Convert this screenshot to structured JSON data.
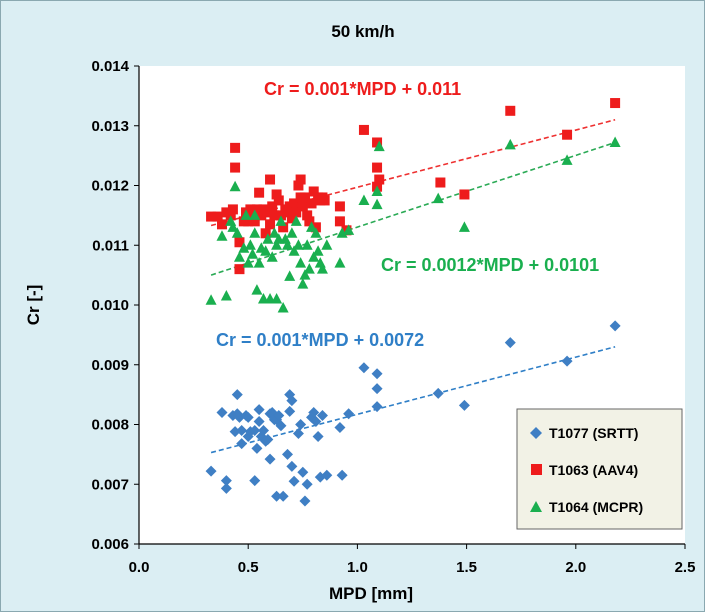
{
  "chart_data": {
    "type": "scatter",
    "title": "50 km/h",
    "xlabel": "MPD [mm]",
    "ylabel": "Cr [-]",
    "xlim": [
      0.0,
      2.5
    ],
    "ylim": [
      0.006,
      0.014
    ],
    "xticks": [
      "0.0",
      "0.5",
      "1.0",
      "1.5",
      "2.0",
      "2.5"
    ],
    "yticks": [
      "0.006",
      "0.007",
      "0.008",
      "0.009",
      "0.010",
      "0.011",
      "0.012",
      "0.013",
      "0.014"
    ],
    "grid": false,
    "legend_position": "bottom-right",
    "series": [
      {
        "name": "T1077 (SRTT)",
        "color": "#3f7fc4",
        "marker": "diamond",
        "trendline": {
          "x": [
            0.33,
            2.18
          ],
          "y": [
            0.00753,
            0.0093
          ],
          "color": "#2f7fc7"
        },
        "equation": "Cr = 0.001*MPD + 0.0072",
        "points": [
          [
            0.33,
            0.00722
          ],
          [
            0.38,
            0.0082
          ],
          [
            0.4,
            0.00693
          ],
          [
            0.4,
            0.00706
          ],
          [
            0.43,
            0.00815
          ],
          [
            0.44,
            0.00788
          ],
          [
            0.45,
            0.0085
          ],
          [
            0.45,
            0.00818
          ],
          [
            0.46,
            0.00812
          ],
          [
            0.47,
            0.0079
          ],
          [
            0.47,
            0.00768
          ],
          [
            0.49,
            0.00815
          ],
          [
            0.5,
            0.0078
          ],
          [
            0.5,
            0.00812
          ],
          [
            0.51,
            0.00788
          ],
          [
            0.53,
            0.0079
          ],
          [
            0.53,
            0.00706
          ],
          [
            0.54,
            0.0076
          ],
          [
            0.55,
            0.00825
          ],
          [
            0.55,
            0.00805
          ],
          [
            0.56,
            0.0078
          ],
          [
            0.57,
            0.0079
          ],
          [
            0.58,
            0.00772
          ],
          [
            0.59,
            0.00775
          ],
          [
            0.6,
            0.00818
          ],
          [
            0.6,
            0.00742
          ],
          [
            0.61,
            0.0082
          ],
          [
            0.62,
            0.00808
          ],
          [
            0.63,
            0.00808
          ],
          [
            0.63,
            0.0068
          ],
          [
            0.64,
            0.00815
          ],
          [
            0.65,
            0.00798
          ],
          [
            0.66,
            0.0068
          ],
          [
            0.68,
            0.0075
          ],
          [
            0.69,
            0.0085
          ],
          [
            0.69,
            0.00822
          ],
          [
            0.7,
            0.0084
          ],
          [
            0.7,
            0.0073
          ],
          [
            0.71,
            0.00705
          ],
          [
            0.73,
            0.00785
          ],
          [
            0.74,
            0.008
          ],
          [
            0.75,
            0.0072
          ],
          [
            0.76,
            0.00672
          ],
          [
            0.77,
            0.007
          ],
          [
            0.79,
            0.00812
          ],
          [
            0.8,
            0.0082
          ],
          [
            0.81,
            0.00805
          ],
          [
            0.82,
            0.0078
          ],
          [
            0.83,
            0.00712
          ],
          [
            0.84,
            0.00815
          ],
          [
            0.86,
            0.00715
          ],
          [
            0.92,
            0.00795
          ],
          [
            0.93,
            0.00715
          ],
          [
            0.96,
            0.00818
          ],
          [
            1.03,
            0.00895
          ],
          [
            1.09,
            0.00885
          ],
          [
            1.09,
            0.0086
          ],
          [
            1.09,
            0.0083
          ],
          [
            1.37,
            0.00852
          ],
          [
            1.49,
            0.00832
          ],
          [
            1.7,
            0.00937
          ],
          [
            1.96,
            0.00906
          ],
          [
            2.18,
            0.00965
          ]
        ]
      },
      {
        "name": "T1063 (AAV4)",
        "color": "#ee1c1c",
        "marker": "square",
        "trendline": {
          "x": [
            0.33,
            2.18
          ],
          "y": [
            0.01133,
            0.0131
          ],
          "color": "#ee3030"
        },
        "equation": "Cr = 0.001*MPD + 0.011",
        "points": [
          [
            0.33,
            0.01148
          ],
          [
            0.36,
            0.01148
          ],
          [
            0.38,
            0.01135
          ],
          [
            0.4,
            0.01155
          ],
          [
            0.42,
            0.0115
          ],
          [
            0.43,
            0.0116
          ],
          [
            0.44,
            0.01263
          ],
          [
            0.44,
            0.0123
          ],
          [
            0.46,
            0.01105
          ],
          [
            0.46,
            0.0106
          ],
          [
            0.48,
            0.0114
          ],
          [
            0.49,
            0.01155
          ],
          [
            0.5,
            0.0114
          ],
          [
            0.51,
            0.0116
          ],
          [
            0.52,
            0.0115
          ],
          [
            0.53,
            0.0114
          ],
          [
            0.54,
            0.0116
          ],
          [
            0.55,
            0.01188
          ],
          [
            0.56,
            0.0115
          ],
          [
            0.57,
            0.0116
          ],
          [
            0.58,
            0.0112
          ],
          [
            0.59,
            0.01155
          ],
          [
            0.6,
            0.0121
          ],
          [
            0.6,
            0.01135
          ],
          [
            0.61,
            0.01165
          ],
          [
            0.62,
            0.0115
          ],
          [
            0.63,
            0.01185
          ],
          [
            0.64,
            0.01175
          ],
          [
            0.65,
            0.0115
          ],
          [
            0.66,
            0.0113
          ],
          [
            0.67,
            0.0116
          ],
          [
            0.68,
            0.01155
          ],
          [
            0.69,
            0.01165
          ],
          [
            0.7,
            0.01145
          ],
          [
            0.71,
            0.0117
          ],
          [
            0.72,
            0.01155
          ],
          [
            0.73,
            0.012
          ],
          [
            0.74,
            0.0121
          ],
          [
            0.74,
            0.0118
          ],
          [
            0.75,
            0.01165
          ],
          [
            0.76,
            0.0118
          ],
          [
            0.77,
            0.0115
          ],
          [
            0.78,
            0.0114
          ],
          [
            0.79,
            0.0117
          ],
          [
            0.8,
            0.0119
          ],
          [
            0.81,
            0.0113
          ],
          [
            0.82,
            0.0118
          ],
          [
            0.83,
            0.01175
          ],
          [
            0.84,
            0.0118
          ],
          [
            0.85,
            0.01175
          ],
          [
            0.92,
            0.01165
          ],
          [
            0.92,
            0.0114
          ],
          [
            0.95,
            0.01125
          ],
          [
            1.03,
            0.01293
          ],
          [
            1.09,
            0.01272
          ],
          [
            1.09,
            0.0123
          ],
          [
            1.09,
            0.01198
          ],
          [
            1.1,
            0.0121
          ],
          [
            1.38,
            0.01205
          ],
          [
            1.49,
            0.01185
          ],
          [
            1.7,
            0.01325
          ],
          [
            1.96,
            0.01285
          ],
          [
            2.18,
            0.01338
          ]
        ]
      },
      {
        "name": "T1064 (MCPR)",
        "color": "#1aaf4f",
        "marker": "triangle",
        "trendline": {
          "x": [
            0.33,
            2.18
          ],
          "y": [
            0.0105,
            0.01272
          ],
          "color": "#2aaa55"
        },
        "equation": "Cr = 0.0012*MPD + 0.0101",
        "points": [
          [
            0.33,
            0.01008
          ],
          [
            0.38,
            0.01115
          ],
          [
            0.4,
            0.01015
          ],
          [
            0.42,
            0.0114
          ],
          [
            0.43,
            0.0113
          ],
          [
            0.44,
            0.01198
          ],
          [
            0.45,
            0.0112
          ],
          [
            0.46,
            0.0108
          ],
          [
            0.48,
            0.01095
          ],
          [
            0.49,
            0.0115
          ],
          [
            0.5,
            0.0107
          ],
          [
            0.51,
            0.011
          ],
          [
            0.52,
            0.01085
          ],
          [
            0.53,
            0.0115
          ],
          [
            0.53,
            0.0112
          ],
          [
            0.54,
            0.01025
          ],
          [
            0.55,
            0.0107
          ],
          [
            0.56,
            0.01095
          ],
          [
            0.57,
            0.0101
          ],
          [
            0.58,
            0.0109
          ],
          [
            0.59,
            0.0111
          ],
          [
            0.6,
            0.0101
          ],
          [
            0.61,
            0.0108
          ],
          [
            0.62,
            0.0112
          ],
          [
            0.63,
            0.0101
          ],
          [
            0.63,
            0.011
          ],
          [
            0.64,
            0.0111
          ],
          [
            0.65,
            0.0114
          ],
          [
            0.66,
            0.00995
          ],
          [
            0.67,
            0.0111
          ],
          [
            0.68,
            0.011
          ],
          [
            0.69,
            0.01048
          ],
          [
            0.7,
            0.0112
          ],
          [
            0.71,
            0.0109
          ],
          [
            0.72,
            0.0114
          ],
          [
            0.73,
            0.011
          ],
          [
            0.74,
            0.0107
          ],
          [
            0.75,
            0.01035
          ],
          [
            0.76,
            0.0105
          ],
          [
            0.77,
            0.011
          ],
          [
            0.78,
            0.0106
          ],
          [
            0.79,
            0.0113
          ],
          [
            0.8,
            0.0108
          ],
          [
            0.81,
            0.0112
          ],
          [
            0.82,
            0.0109
          ],
          [
            0.83,
            0.0107
          ],
          [
            0.84,
            0.0106
          ],
          [
            0.86,
            0.011
          ],
          [
            0.92,
            0.0107
          ],
          [
            0.93,
            0.0112
          ],
          [
            0.96,
            0.01125
          ],
          [
            1.03,
            0.01175
          ],
          [
            1.09,
            0.0119
          ],
          [
            1.09,
            0.01168
          ],
          [
            1.1,
            0.01265
          ],
          [
            1.37,
            0.01178
          ],
          [
            1.49,
            0.0113
          ],
          [
            1.7,
            0.01268
          ],
          [
            1.96,
            0.01242
          ],
          [
            2.18,
            0.01272
          ]
        ]
      }
    ]
  }
}
